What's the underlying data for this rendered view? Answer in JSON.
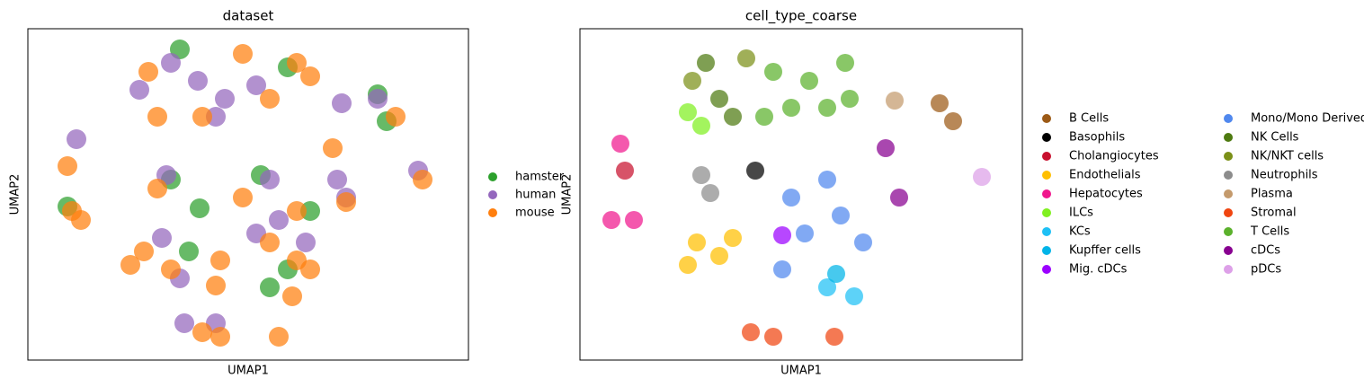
{
  "chart_data": [
    {
      "type": "scatter",
      "title": "dataset",
      "xlabel": "UMAP1",
      "ylabel": "UMAP2",
      "xlim": [
        0,
        490
      ],
      "ylim": [
        0,
        369
      ],
      "legend": "right",
      "legend_ncol": 1,
      "series": [
        {
          "name": "hamster",
          "color": "#2ca02c",
          "x": [
            289,
            169,
            399,
            389,
            159,
            259,
            269,
            289,
            44,
            314,
            179,
            191
          ],
          "y": [
            326,
            346,
            266,
            296,
            201,
            206,
            81,
            101,
            171,
            166,
            121,
            169
          ]
        },
        {
          "name": "human",
          "color": "#9467bd",
          "x": [
            159,
            189,
            219,
            254,
            124,
            209,
            349,
            389,
            54,
            154,
            344,
            354,
            434,
            269,
            279,
            309,
            254,
            149,
            169,
            174,
            209
          ],
          "y": [
            331,
            311,
            291,
            306,
            301,
            271,
            286,
            291,
            246,
            206,
            201,
            181,
            211,
            201,
            156,
            131,
            141,
            136,
            91,
            41,
            41
          ]
        },
        {
          "name": "mouse",
          "color": "#ff7f0e",
          "x": [
            134,
            239,
            299,
            314,
            144,
            194,
            269,
            409,
            44,
            144,
            339,
            439,
            239,
            299,
            269,
            314,
            59,
            49,
            129,
            114,
            159,
            214,
            209,
            299,
            294,
            194,
            214,
            279,
            354
          ],
          "y": [
            321,
            341,
            331,
            316,
            271,
            271,
            291,
            271,
            216,
            191,
            236,
            201,
            181,
            166,
            131,
            101,
            156,
            166,
            121,
            106,
            101,
            111,
            83,
            111,
            71,
            31,
            26,
            26,
            176
          ]
        }
      ]
    },
    {
      "type": "scatter",
      "title": "cell_type_coarse",
      "xlabel": "UMAP1",
      "ylabel": "UMAP2",
      "xlim": [
        0,
        492
      ],
      "ylim": [
        0,
        369
      ],
      "legend": "right",
      "legend_ncol": 2,
      "series": [
        {
          "name": "B Cells",
          "color": "#9c5a16",
          "x": [
            400,
            415
          ],
          "y": [
            286,
            266
          ]
        },
        {
          "name": "Basophils",
          "color": "#000000",
          "x": [
            195
          ],
          "y": [
            211
          ]
        },
        {
          "name": "Cholangiocytes",
          "color": "#c8102e",
          "x": [
            50
          ],
          "y": [
            211
          ]
        },
        {
          "name": "Endothelials",
          "color": "#ffbf00",
          "x": [
            130,
            155,
            120,
            170
          ],
          "y": [
            131,
            116,
            106,
            136
          ]
        },
        {
          "name": "Hepatocytes",
          "color": "#f0178d",
          "x": [
            45,
            60,
            35
          ],
          "y": [
            241,
            156,
            156
          ]
        },
        {
          "name": "ILCs",
          "color": "#80f020",
          "x": [
            120,
            135
          ],
          "y": [
            276,
            261
          ]
        },
        {
          "name": "KCs",
          "color": "#1ec0f5",
          "x": [
            275,
            305
          ],
          "y": [
            81,
            71
          ]
        },
        {
          "name": "Kupffer cells",
          "color": "#00b4e8",
          "x": [
            285
          ],
          "y": [
            96
          ]
        },
        {
          "name": "Mig. cDCs",
          "color": "#9b00ff",
          "x": [
            225
          ],
          "y": [
            139
          ]
        },
        {
          "name": "Mono/Mono Derived",
          "color": "#5088ee",
          "x": [
            275,
            290,
            250,
            315,
            235,
            225
          ],
          "y": [
            201,
            161,
            141,
            131,
            181,
            101
          ]
        },
        {
          "name": "NK Cells",
          "color": "#4e7a10",
          "x": [
            140,
            155,
            170
          ],
          "y": [
            331,
            291,
            271
          ]
        },
        {
          "name": "NK/NKT cells",
          "color": "#7b9018",
          "x": [
            125,
            185
          ],
          "y": [
            311,
            336
          ]
        },
        {
          "name": "Neutrophils",
          "color": "#8c8c8c",
          "x": [
            135,
            145
          ],
          "y": [
            206,
            186
          ]
        },
        {
          "name": "Plasma",
          "color": "#c49a6c",
          "x": [
            350
          ],
          "y": [
            289
          ]
        },
        {
          "name": "Stromal",
          "color": "#f04510",
          "x": [
            190,
            215,
            283
          ],
          "y": [
            31,
            26,
            26
          ]
        },
        {
          "name": "T Cells",
          "color": "#5bb12c",
          "x": [
            215,
            255,
            295,
            235,
            300,
            205,
            275
          ],
          "y": [
            321,
            311,
            331,
            281,
            291,
            271,
            281
          ]
        },
        {
          "name": "cDCs",
          "color": "#880090",
          "x": [
            340,
            355
          ],
          "y": [
            236,
            181
          ]
        },
        {
          "name": "pDCs",
          "color": "#dda0e8",
          "x": [
            447
          ],
          "y": [
            204
          ]
        }
      ]
    }
  ]
}
